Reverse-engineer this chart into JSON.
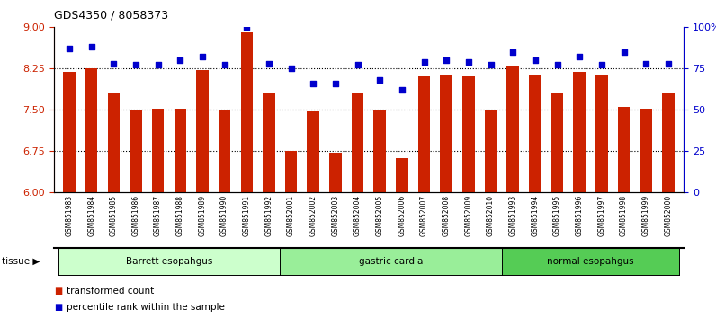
{
  "title": "GDS4350 / 8058373",
  "samples": [
    "GSM851983",
    "GSM851984",
    "GSM851985",
    "GSM851986",
    "GSM851987",
    "GSM851988",
    "GSM851989",
    "GSM851990",
    "GSM851991",
    "GSM851992",
    "GSM852001",
    "GSM852002",
    "GSM852003",
    "GSM852004",
    "GSM852005",
    "GSM852006",
    "GSM852007",
    "GSM852008",
    "GSM852009",
    "GSM852010",
    "GSM851993",
    "GSM851994",
    "GSM851995",
    "GSM851996",
    "GSM851997",
    "GSM851998",
    "GSM851999",
    "GSM852000"
  ],
  "bar_values": [
    8.19,
    8.25,
    7.8,
    7.48,
    7.52,
    7.52,
    8.22,
    7.5,
    8.9,
    7.8,
    6.75,
    7.47,
    6.72,
    7.8,
    7.5,
    6.63,
    8.1,
    8.13,
    8.1,
    7.5,
    8.28,
    8.13,
    7.8,
    8.18,
    8.13,
    7.55,
    7.52,
    7.8
  ],
  "dot_values": [
    87,
    88,
    78,
    77,
    77,
    80,
    82,
    77,
    100,
    78,
    75,
    66,
    66,
    77,
    68,
    62,
    79,
    80,
    79,
    77,
    85,
    80,
    77,
    82,
    77,
    85,
    78,
    78
  ],
  "groups": [
    {
      "label": "Barrett esopahgus",
      "start": 0,
      "end": 10,
      "color": "#ccffcc"
    },
    {
      "label": "gastric cardia",
      "start": 10,
      "end": 20,
      "color": "#99ee99"
    },
    {
      "label": "normal esopahgus",
      "start": 20,
      "end": 28,
      "color": "#55cc55"
    }
  ],
  "bar_color": "#cc2200",
  "dot_color": "#0000cc",
  "ylim_left": [
    6,
    9
  ],
  "ylim_right": [
    0,
    100
  ],
  "yticks_left": [
    6,
    6.75,
    7.5,
    8.25,
    9
  ],
  "yticks_right": [
    0,
    25,
    50,
    75,
    100
  ],
  "ytick_labels_right": [
    "0",
    "25",
    "50",
    "75",
    "100%"
  ],
  "hlines": [
    6.75,
    7.5,
    8.25
  ],
  "bar_bottom": 6,
  "legend_items": [
    {
      "label": "transformed count",
      "color": "#cc2200"
    },
    {
      "label": "percentile rank within the sample",
      "color": "#0000cc"
    }
  ],
  "tissue_label": "tissue ▶"
}
